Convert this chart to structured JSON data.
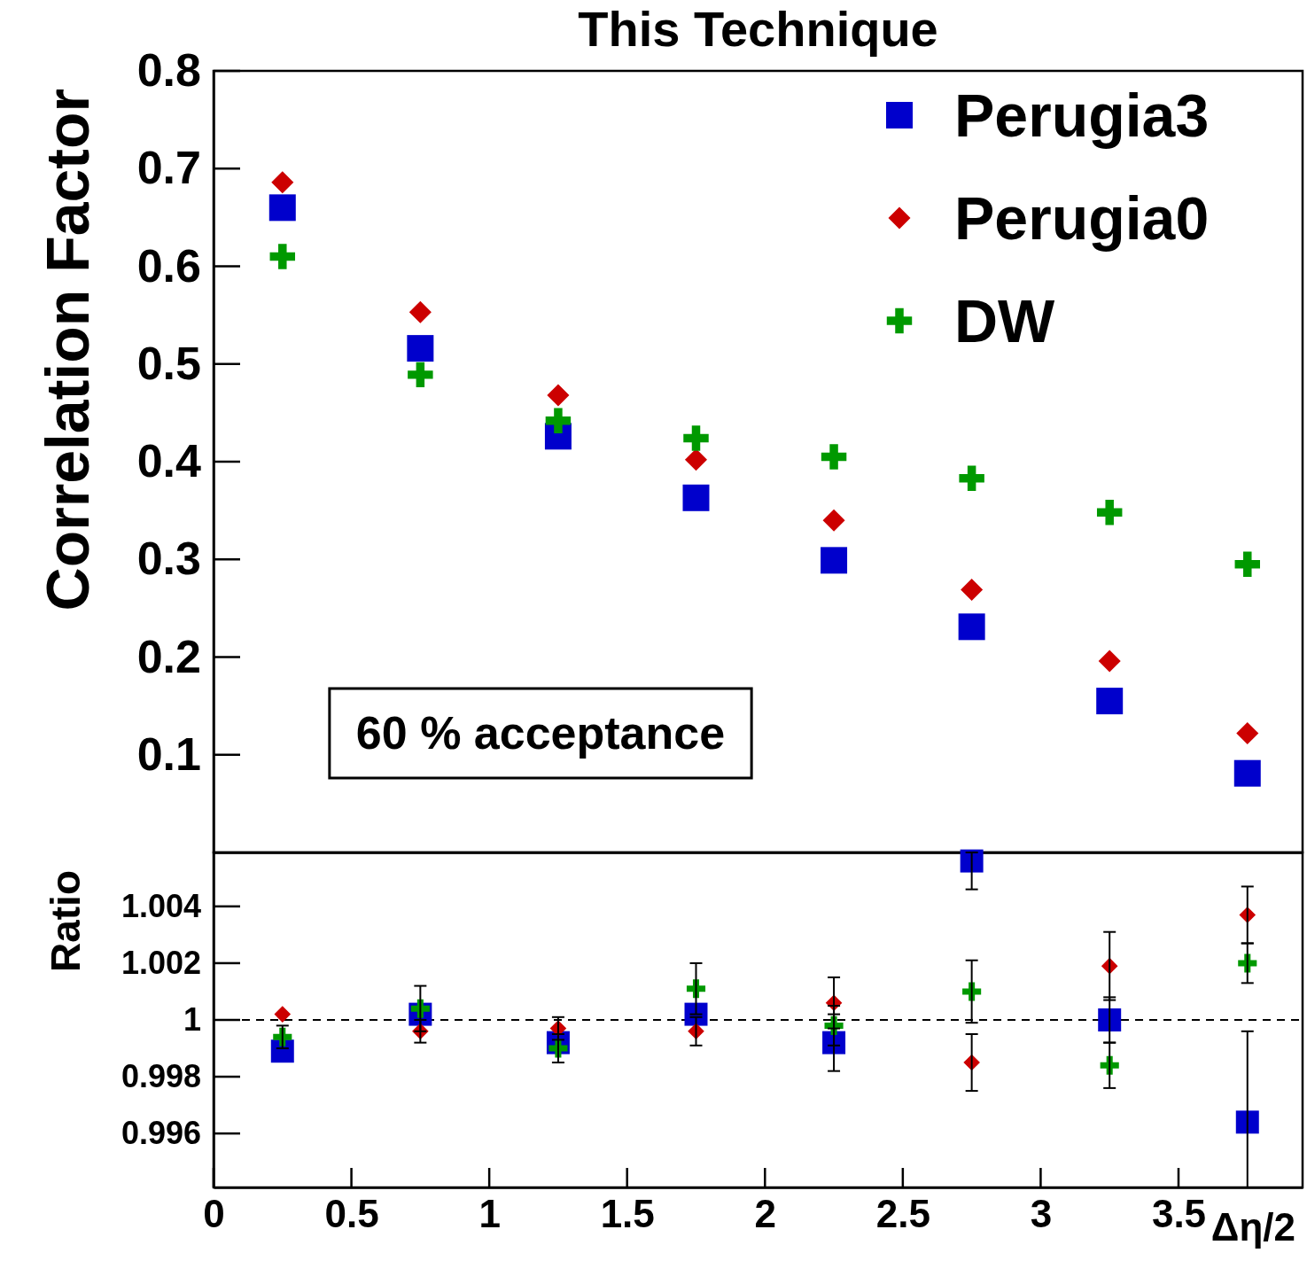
{
  "chart_data": [
    {
      "type": "scatter",
      "title": "This Technique",
      "ylabel": "Correlation Factor",
      "x": [
        0.25,
        0.75,
        1.25,
        1.75,
        2.25,
        2.75,
        3.25,
        3.75
      ],
      "xlim": [
        0,
        3.95
      ],
      "ylim": [
        0,
        0.8
      ],
      "yticks": [
        0.1,
        0.2,
        0.3,
        0.4,
        0.5,
        0.6,
        0.7,
        0.8
      ],
      "tick_labels": "y",
      "legend": "top right",
      "annotations": [
        "60 % acceptance"
      ],
      "series": [
        {
          "name": "Perugia3",
          "color": "#0000cc",
          "marker": "square",
          "values": [
            0.66,
            0.516,
            0.426,
            0.363,
            0.299,
            0.231,
            0.155,
            0.081
          ]
        },
        {
          "name": "Perugia0",
          "color": "#cc0000",
          "marker": "diamond",
          "values": [
            0.686,
            0.553,
            0.468,
            0.402,
            0.34,
            0.269,
            0.196,
            0.122
          ]
        },
        {
          "name": "DW",
          "color": "#009900",
          "marker": "cross",
          "values": [
            0.61,
            0.489,
            0.442,
            0.424,
            0.405,
            0.383,
            0.348,
            0.295
          ]
        }
      ]
    },
    {
      "type": "scatter",
      "ylabel": "Ratio",
      "xlabel": "Δη/2",
      "x": [
        0.25,
        0.75,
        1.25,
        1.75,
        2.25,
        2.75,
        3.25,
        3.75
      ],
      "xlim": [
        0,
        3.95
      ],
      "xticks": [
        0,
        0.5,
        1,
        1.5,
        2,
        2.5,
        3,
        3.5
      ],
      "ylim": [
        0.9941,
        1.0059
      ],
      "yticks": [
        {
          "value": 0.996,
          "label": "0.996"
        },
        {
          "value": 0.998,
          "label": "0.998"
        },
        1,
        {
          "value": 1.002,
          "label": "1.002"
        },
        {
          "value": 1.004,
          "label": "1.004"
        }
      ],
      "ref_lines": [
        {
          "axis": "y",
          "value": 1,
          "line_style": "dashed"
        }
      ],
      "series": [
        {
          "color": "#0000cc",
          "marker": "square",
          "values": [
            0.9989,
            1.0002,
            0.9992,
            1.0002,
            0.9992,
            1.0056,
            1.0,
            0.9964
          ],
          "errors": [
            null,
            null,
            null,
            null,
            0.001,
            [
              1.0046,
              1.0059
            ],
            0.0008,
            [
              0.9941,
              0.9996
            ]
          ]
        },
        {
          "color": "#cc0000",
          "marker": "diamond",
          "values": [
            1.0002,
            0.9996,
            0.9997,
            0.9996,
            1.0006,
            0.9985,
            1.0019,
            1.0037
          ],
          "errors": [
            null,
            0.0004,
            0.0004,
            0.0005,
            0.0009,
            0.001,
            0.0012,
            0.001
          ]
        },
        {
          "color": "#009900",
          "marker": "cross",
          "values": [
            0.9994,
            1.0004,
            0.999,
            1.0011,
            0.9998,
            1.001,
            0.9984,
            1.002
          ],
          "errors": [
            0.0004,
            0.0008,
            0.0005,
            0.0009,
            0.0007,
            0.0011,
            0.0008,
            0.0007
          ]
        }
      ]
    }
  ]
}
